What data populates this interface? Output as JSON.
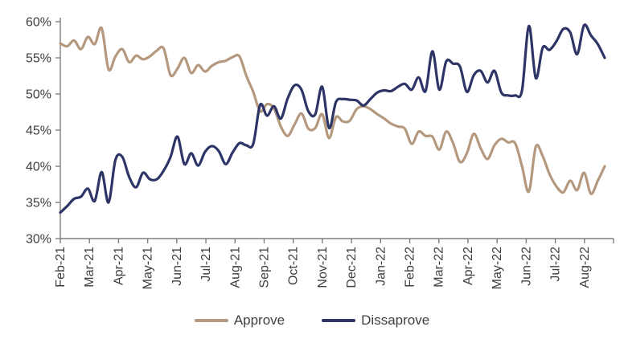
{
  "chart_data": {
    "type": "line",
    "title": "",
    "xlabel": "",
    "ylabel": "",
    "x_categories": [
      "Feb-21",
      "Mar-21",
      "Apr-21",
      "May-21",
      "Jun-21",
      "Jul-21",
      "Aug-21",
      "Sep-21",
      "Oct-21",
      "Nov-21",
      "Dec-21",
      "Jan-22",
      "Feb-22",
      "Mar-22",
      "Apr-22",
      "May-22",
      "Jun-22",
      "Jul-22",
      "Aug-22"
    ],
    "x_resolution": "weekly",
    "y_ticks": [
      "30%",
      "35%",
      "40%",
      "45%",
      "50%",
      "55%",
      "60%"
    ],
    "ylim": [
      30,
      60
    ],
    "grid": false,
    "legend_position": "bottom",
    "axis_color": "#7f7f7f",
    "label_color": "#3f3f3f",
    "series": [
      {
        "name": "Approve",
        "color": "#b5997f",
        "values": [
          57.0,
          56.6,
          57.4,
          56.2,
          57.9,
          56.9,
          59.1,
          53.4,
          55.2,
          56.2,
          54.4,
          55.3,
          54.8,
          55.2,
          56.0,
          56.3,
          52.6,
          53.5,
          55.0,
          52.9,
          54.0,
          53.1,
          53.9,
          54.4,
          54.6,
          55.1,
          55.2,
          52.5,
          50.3,
          47.6,
          48.6,
          48.0,
          45.5,
          44.2,
          45.8,
          47.3,
          45.2,
          45.3,
          47.2,
          43.9,
          46.8,
          46.2,
          46.3,
          47.9,
          48.3,
          47.9,
          47.2,
          46.6,
          45.9,
          45.5,
          45.2,
          43.1,
          44.8,
          44.2,
          44.1,
          42.3,
          44.8,
          43.2,
          40.6,
          41.8,
          44.5,
          42.5,
          41.0,
          42.9,
          43.8,
          43.3,
          43.2,
          40.0,
          36.5,
          42.7,
          41.4,
          38.9,
          37.2,
          36.4,
          38.0,
          36.7,
          39.1,
          36.2,
          38.0,
          40.0
        ]
      },
      {
        "name": "Dissaprove",
        "color": "#2d3466",
        "values": [
          33.6,
          34.5,
          35.5,
          35.8,
          36.9,
          35.2,
          39.2,
          35.0,
          40.9,
          41.3,
          38.5,
          37.1,
          39.1,
          38.2,
          38.2,
          39.4,
          41.3,
          44.1,
          40.3,
          41.8,
          40.1,
          42.0,
          42.8,
          42.1,
          40.3,
          41.9,
          43.2,
          42.9,
          43.1,
          48.5,
          47.0,
          48.3,
          46.6,
          49.4,
          51.2,
          50.6,
          47.6,
          47.2,
          51.0,
          45.3,
          48.9,
          49.3,
          49.2,
          49.1,
          48.4,
          49.3,
          50.2,
          50.5,
          50.4,
          51.0,
          51.4,
          50.6,
          52.3,
          50.4,
          55.9,
          50.6,
          54.5,
          54.2,
          53.8,
          50.3,
          52.6,
          53.2,
          51.6,
          53.2,
          50.2,
          49.8,
          49.8,
          50.5,
          59.4,
          52.2,
          56.4,
          56.1,
          57.3,
          59.0,
          58.5,
          55.5,
          59.5,
          58.1,
          56.9,
          55.0
        ]
      }
    ]
  }
}
